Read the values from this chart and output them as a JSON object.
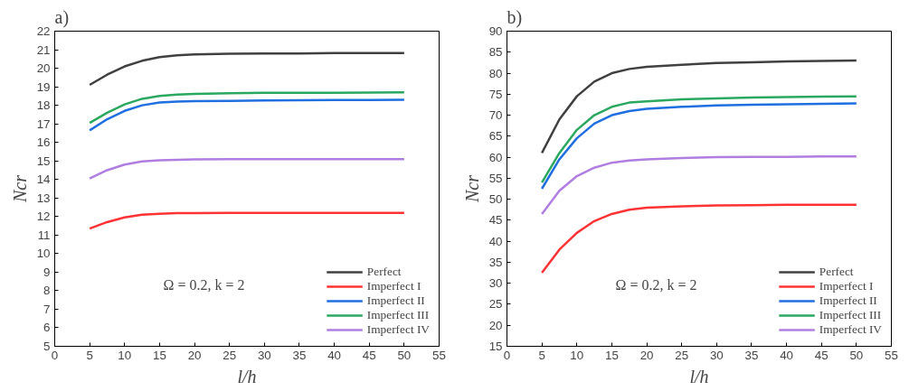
{
  "chart_data": [
    {
      "type": "line",
      "title": "a)",
      "xlabel": "l/h",
      "ylabel": "Ncr",
      "annotations": [
        "Ω = 0.2, k = 2"
      ],
      "legend": "bottom right",
      "grid": false,
      "line_style": "solid",
      "xlim": [
        0,
        55
      ],
      "xticks": [
        0,
        5,
        10,
        15,
        20,
        25,
        30,
        35,
        40,
        45,
        50,
        55
      ],
      "ylim": [
        5,
        22
      ],
      "yticks": [
        5,
        6,
        7,
        8,
        9,
        10,
        11,
        12,
        13,
        14,
        15,
        16,
        17,
        18,
        19,
        20,
        21,
        22
      ],
      "x": [
        5,
        7.5,
        10,
        12.5,
        15,
        17.5,
        20,
        25,
        30,
        35,
        40,
        45,
        50
      ],
      "series": [
        {
          "name": "Perfect",
          "color": "#404040",
          "values": [
            19.1,
            19.65,
            20.1,
            20.4,
            20.6,
            20.7,
            20.75,
            20.78,
            20.8,
            20.8,
            20.82,
            20.82,
            20.82
          ]
        },
        {
          "name": "Imperfect I",
          "color": "#ff3333",
          "values": [
            11.35,
            11.7,
            11.95,
            12.1,
            12.15,
            12.18,
            12.18,
            12.2,
            12.2,
            12.2,
            12.2,
            12.2,
            12.2
          ]
        },
        {
          "name": "Imperfect II",
          "color": "#1f6fe0",
          "values": [
            16.65,
            17.25,
            17.7,
            18.0,
            18.15,
            18.2,
            18.22,
            18.24,
            18.26,
            18.27,
            18.28,
            18.28,
            18.3
          ]
        },
        {
          "name": "Imperfect III",
          "color": "#2aa860",
          "values": [
            17.05,
            17.6,
            18.05,
            18.35,
            18.5,
            18.58,
            18.62,
            18.65,
            18.67,
            18.68,
            18.68,
            18.69,
            18.7
          ]
        },
        {
          "name": "Imperfect IV",
          "color": "#b07ee0",
          "values": [
            14.05,
            14.5,
            14.8,
            14.97,
            15.03,
            15.06,
            15.08,
            15.09,
            15.1,
            15.1,
            15.1,
            15.1,
            15.1
          ]
        }
      ]
    },
    {
      "type": "line",
      "title": "b)",
      "xlabel": "l/h",
      "ylabel": "Ncr",
      "annotations": [
        "Ω = 0.2, k = 2"
      ],
      "legend": "bottom right",
      "grid": false,
      "line_style": "solid",
      "xlim": [
        0,
        55
      ],
      "xticks": [
        0,
        5,
        10,
        15,
        20,
        25,
        30,
        35,
        40,
        45,
        50,
        55
      ],
      "ylim": [
        15,
        90
      ],
      "yticks": [
        15,
        20,
        25,
        30,
        35,
        40,
        45,
        50,
        55,
        60,
        65,
        70,
        75,
        80,
        85,
        90
      ],
      "x": [
        5,
        7.5,
        10,
        12.5,
        15,
        17.5,
        20,
        25,
        30,
        35,
        40,
        45,
        50
      ],
      "series": [
        {
          "name": "Perfect",
          "color": "#404040",
          "values": [
            61,
            69,
            74.5,
            78,
            80,
            81,
            81.5,
            82,
            82.4,
            82.6,
            82.8,
            82.9,
            83
          ]
        },
        {
          "name": "Imperfect I",
          "color": "#ff3333",
          "values": [
            32.5,
            38,
            42,
            44.8,
            46.5,
            47.5,
            48,
            48.3,
            48.5,
            48.6,
            48.7,
            48.7,
            48.7
          ]
        },
        {
          "name": "Imperfect II",
          "color": "#1f6fe0",
          "values": [
            52.5,
            59.5,
            64.5,
            68,
            70,
            71,
            71.5,
            72,
            72.3,
            72.5,
            72.6,
            72.7,
            72.8
          ]
        },
        {
          "name": "Imperfect III",
          "color": "#2aa860",
          "values": [
            54,
            61,
            66.5,
            70,
            72,
            73,
            73.3,
            73.8,
            74,
            74.2,
            74.3,
            74.4,
            74.5
          ]
        },
        {
          "name": "Imperfect IV",
          "color": "#b07ee0",
          "values": [
            46.5,
            52,
            55.5,
            57.5,
            58.7,
            59.2,
            59.5,
            59.8,
            60,
            60.1,
            60.1,
            60.2,
            60.2
          ]
        }
      ]
    }
  ]
}
